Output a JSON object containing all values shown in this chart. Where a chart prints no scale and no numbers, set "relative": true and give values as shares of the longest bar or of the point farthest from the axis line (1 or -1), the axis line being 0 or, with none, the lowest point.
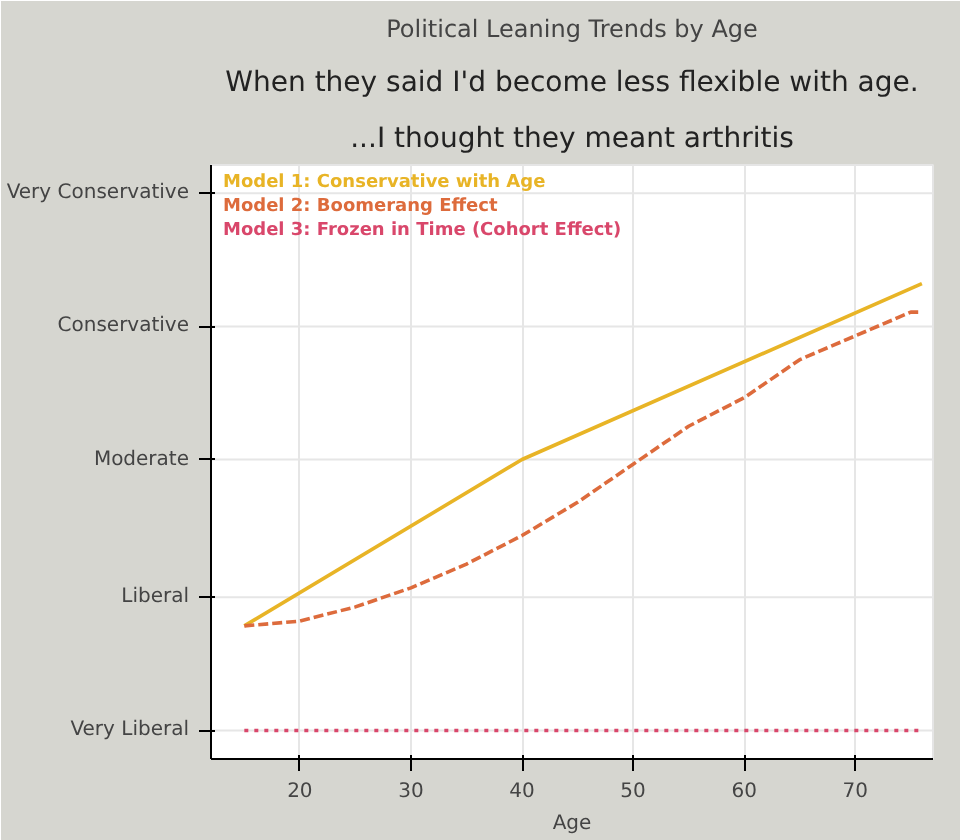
{
  "chart_data": {
    "type": "line",
    "title": "Political Leaning Trends by Age",
    "xlabel": "Age",
    "annotations": [
      "When they said I'd become less flexible with age.",
      "...I thought they meant arthritis"
    ],
    "xlim": [
      12,
      77
    ],
    "xticks": [
      20,
      30,
      40,
      50,
      60,
      70
    ],
    "relative": true,
    "ref_lines": [
      {
        "axis": "y",
        "value": 0.06,
        "label": "Very Liberal",
        "color": "#e6e6e6"
      },
      {
        "axis": "y",
        "value": 0.34,
        "label": "Liberal",
        "color": "#e6e6e6"
      },
      {
        "axis": "y",
        "value": 0.63,
        "label": "Moderate",
        "color": "#e6e6e6"
      },
      {
        "axis": "y",
        "value": 0.91,
        "label": "Conservative",
        "color": "#e6e6e6"
      },
      {
        "axis": "y",
        "value": 1.19,
        "label": "Very Conservative",
        "color": "#e6e6e6"
      }
    ],
    "grid": "x",
    "legend": "top left",
    "series": [
      {
        "name": "Model 1: Conservative with Age",
        "color": "#e8b426",
        "line_style": "solid",
        "x": [
          15,
          40,
          76
        ],
        "values": [
          0.28,
          0.63,
          1
        ]
      },
      {
        "name": "Model 2: Boomerang Effect",
        "color": "#dd6b3c",
        "line_style": "dashed",
        "x": [
          15,
          20,
          25,
          30,
          35,
          40,
          45,
          50,
          55,
          60,
          65,
          70,
          75,
          76
        ],
        "values": [
          0.28,
          0.29,
          0.32,
          0.36,
          0.41,
          0.47,
          0.54,
          0.62,
          0.7,
          0.76,
          0.84,
          0.89,
          0.94,
          0.94
        ]
      },
      {
        "name": "Model 3: Frozen in Time (Cohort Effect)",
        "color": "#d9476b",
        "line_style": "dotted",
        "x": [
          15,
          76
        ],
        "values": [
          0.06,
          0.06
        ]
      }
    ]
  }
}
